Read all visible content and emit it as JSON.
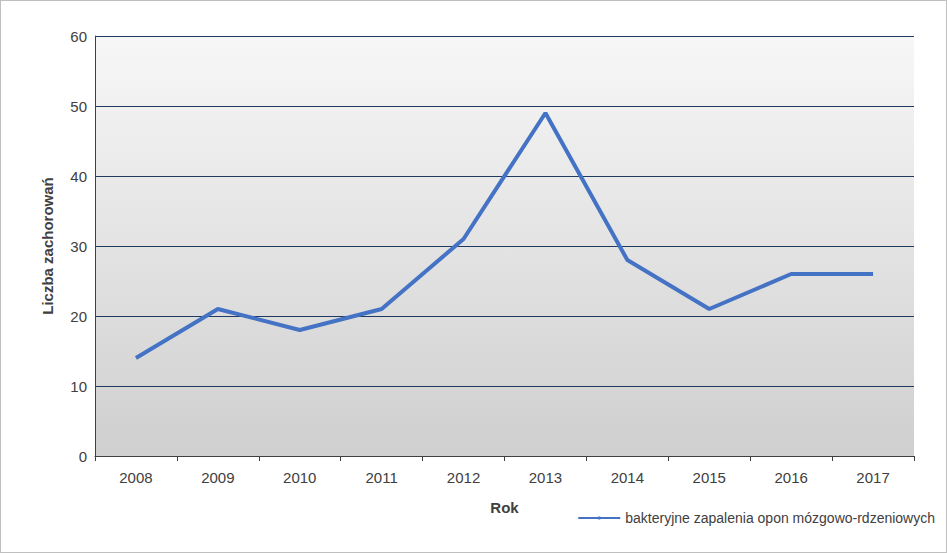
{
  "chart_data": {
    "type": "line",
    "x_label": "Rok",
    "y_label": "Liczba zachorowań",
    "categories": [
      "2008",
      "2009",
      "2010",
      "2011",
      "2012",
      "2013",
      "2014",
      "2015",
      "2016",
      "2017"
    ],
    "series": [
      {
        "name": "bakteryjne zapalenia opon mózgowo-rdzeniowych",
        "color": "#4472c4",
        "values": [
          14,
          21,
          18,
          21,
          31,
          49,
          28,
          21,
          26,
          26
        ]
      }
    ],
    "ylim": [
      0,
      60
    ],
    "yticks": [
      0,
      10,
      20,
      30,
      40,
      50,
      60
    ],
    "grid": true,
    "legend": "bottom-right"
  }
}
